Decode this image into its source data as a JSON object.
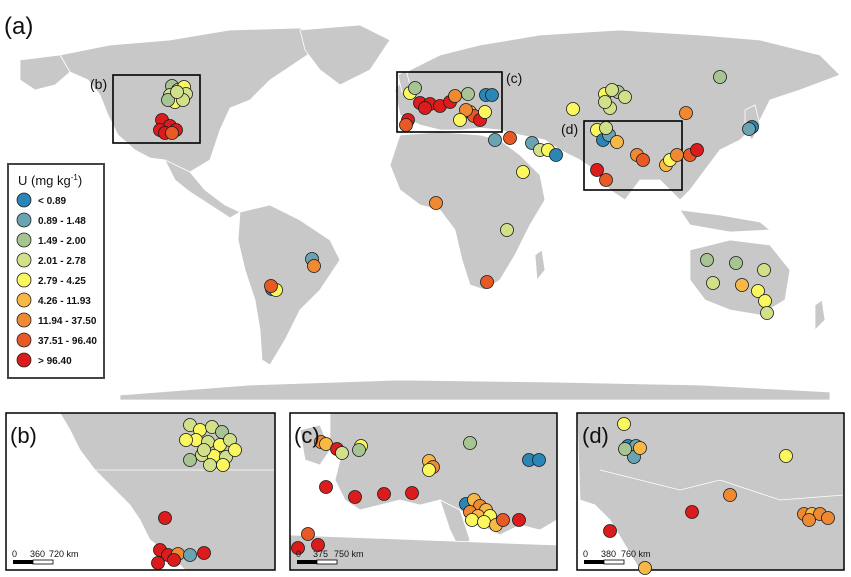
{
  "panels": {
    "a": {
      "label": "(a)"
    },
    "b": {
      "label": "(b)",
      "scale": [
        "0",
        "360",
        "720 km"
      ]
    },
    "c": {
      "label": "(c)",
      "scale": [
        "0",
        "375",
        "750 km"
      ]
    },
    "d": {
      "label": "(d)",
      "scale": [
        "0",
        "380",
        "760 km"
      ]
    }
  },
  "inset_labels": {
    "b": "(b)",
    "c": "(c)",
    "d": "(d)"
  },
  "legend": {
    "title_main": "U (mg kg",
    "title_sup": "-1",
    "title_close": ")",
    "classes": [
      {
        "label": "< 0.89",
        "color": "#2b86b8"
      },
      {
        "label": "0.89 - 1.48",
        "color": "#6aa3b4"
      },
      {
        "label": "1.49 - 2.00",
        "color": "#a7c592"
      },
      {
        "label": "2.01 - 2.78",
        "color": "#d3e08a"
      },
      {
        "label": "2.79 - 4.25",
        "color": "#fbf75e"
      },
      {
        "label": "4.26 - 11.93",
        "color": "#f8b845"
      },
      {
        "label": "11.94 - 37.50",
        "color": "#f08a32"
      },
      {
        "label": "37.51 - 96.40",
        "color": "#e75a25"
      },
      {
        "label": "> 96.40",
        "color": "#dc1c1c"
      }
    ]
  },
  "colors": {
    "land": "#c8c8c8",
    "border": "#ffffff",
    "ocean": "#ffffff",
    "frame": "#000000"
  }
}
